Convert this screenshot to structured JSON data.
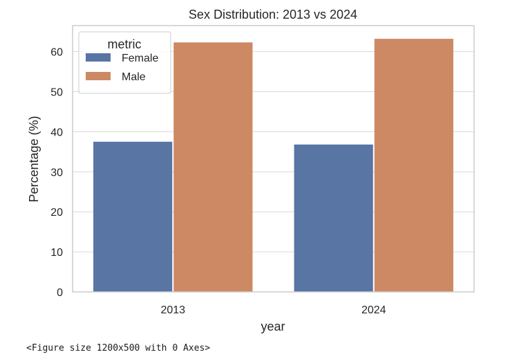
{
  "chart_data": {
    "type": "bar",
    "title": "Sex Distribution: 2013 vs 2024",
    "xlabel": "year",
    "ylabel": "Percentage (%)",
    "categories": [
      "2013",
      "2024"
    ],
    "series": [
      {
        "name": "Female",
        "values": [
          37.5,
          36.8
        ],
        "color": "#5975a4"
      },
      {
        "name": "Male",
        "values": [
          62.3,
          63.2
        ],
        "color": "#cc8963"
      }
    ],
    "ylim": [
      0,
      66.5
    ],
    "yticks": [
      0,
      10,
      20,
      30,
      40,
      50,
      60
    ],
    "grid": true,
    "legend": {
      "title": "metric",
      "placement": "top-left"
    }
  },
  "figure_note": "<Figure size 1200x500 with 0 Axes>"
}
